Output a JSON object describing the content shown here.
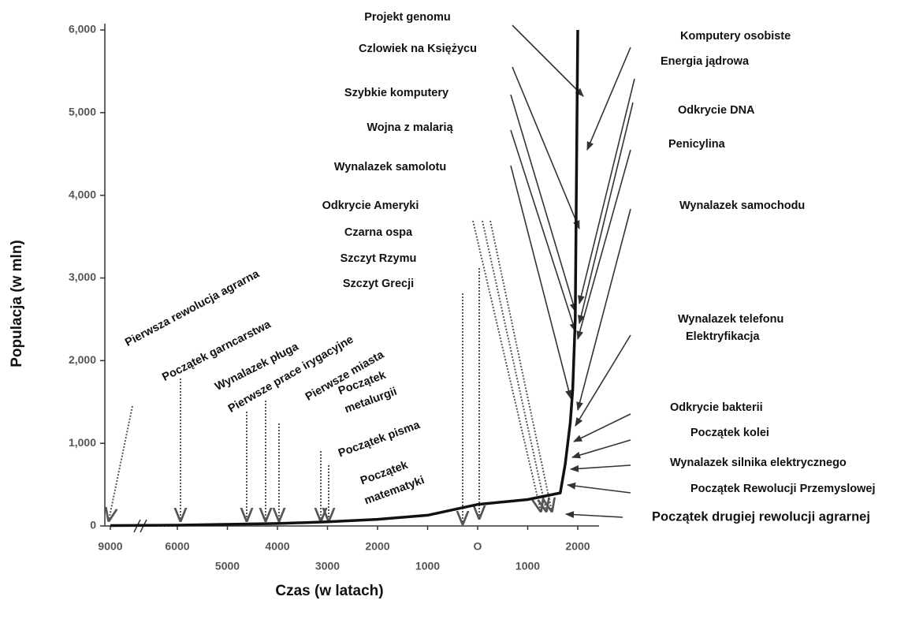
{
  "chart_data": {
    "type": "line",
    "xlabel": "Czas (w latach)",
    "ylabel": "Populacja (w mln)",
    "x": [
      -9000,
      -6000,
      -4000,
      -3000,
      -2000,
      -1000,
      0,
      1000,
      1650,
      1750,
      1850,
      1900,
      1950,
      2000
    ],
    "values": [
      5,
      10,
      30,
      50,
      80,
      130,
      260,
      320,
      400,
      750,
      1250,
      1650,
      2500,
      6000
    ],
    "color": "#111111",
    "xlim": [
      -9000,
      2000
    ],
    "ylim": [
      0,
      6000
    ],
    "xbreak": true,
    "xticks": [
      {
        "value": -9000,
        "label": "9000"
      },
      {
        "value": -6000,
        "label": "6000"
      },
      {
        "value": -5000,
        "label": "5000"
      },
      {
        "value": -4000,
        "label": "4000"
      },
      {
        "value": -3000,
        "label": "3000"
      },
      {
        "value": -2000,
        "label": "2000"
      },
      {
        "value": -1000,
        "label": "1000"
      },
      {
        "value": 0,
        "label": "O"
      },
      1000,
      2000
    ],
    "yticks": [
      0,
      {
        "value": 1000,
        "label": "1,000"
      },
      {
        "value": 2000,
        "label": "2,000"
      },
      {
        "value": 3000,
        "label": "3,000"
      },
      {
        "value": 4000,
        "label": "4,000"
      },
      {
        "value": 5000,
        "label": "5,000"
      },
      {
        "value": 6000,
        "label": "6,000"
      }
    ],
    "annotations": [
      "Projekt genomu",
      "Czlowiek na Księżycu",
      "Szybkie komputery",
      "Wojna z malarią",
      "Wynalazek samolotu",
      "Odkrycie Ameryki",
      "Czarna ospa",
      "Szczyt Rzymu",
      "Szczyt Grecji",
      "Komputery osobiste",
      "Energia jądrowa",
      "Odkrycie DNA",
      "Penicylina",
      "Wynalazek samochodu",
      "Wynalazek telefonu",
      "Elektryfikacja",
      "Odkrycie  bakterii",
      "Początek kolei",
      "Wynalazek silnika elektrycznego",
      "Początek Rewolucji Przemyslowej",
      "Początek drugiej rewolucji agrarnej",
      "Pierwsza rewolucja agrarna",
      "Początek garncarstwa",
      "Wynalazek pługa",
      "Pierwsze prace irygacyjne",
      "Pierwsze miasta",
      "Początek",
      "metalurgii",
      "Początek pisma",
      "Początek",
      "matematyki"
    ]
  }
}
